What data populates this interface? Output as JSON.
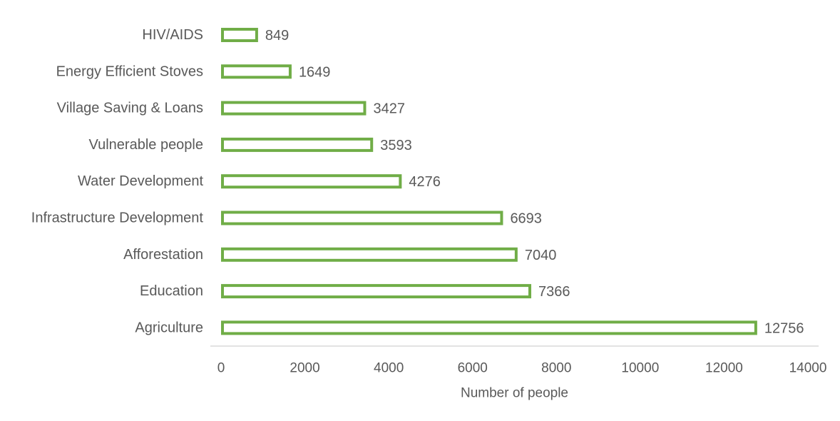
{
  "chart_data": {
    "type": "bar",
    "orientation": "horizontal",
    "categories": [
      "HIV/AIDS",
      "Energy Efficient Stoves",
      "Village Saving & Loans",
      "Vulnerable people",
      "Water Development",
      "Infrastructure Development",
      "Afforestation",
      "Education",
      "Agriculture"
    ],
    "values": [
      849,
      1649,
      3427,
      3593,
      4276,
      6693,
      7040,
      7366,
      12756
    ],
    "data_labels": [
      "849",
      "1649",
      "3427",
      "3593",
      "4276",
      "6693",
      "7040",
      "7366",
      "12756"
    ],
    "xlabel": "Number of people",
    "ylabel": "",
    "xlim": [
      0,
      14000
    ],
    "x_ticks": [
      0,
      2000,
      4000,
      6000,
      8000,
      10000,
      12000,
      14000
    ],
    "x_tick_labels": [
      "0",
      "2000",
      "4000",
      "6000",
      "8000",
      "10000",
      "12000",
      "14000"
    ],
    "grid": false,
    "bar_style": "outline",
    "bar_color": "#70AD47"
  }
}
